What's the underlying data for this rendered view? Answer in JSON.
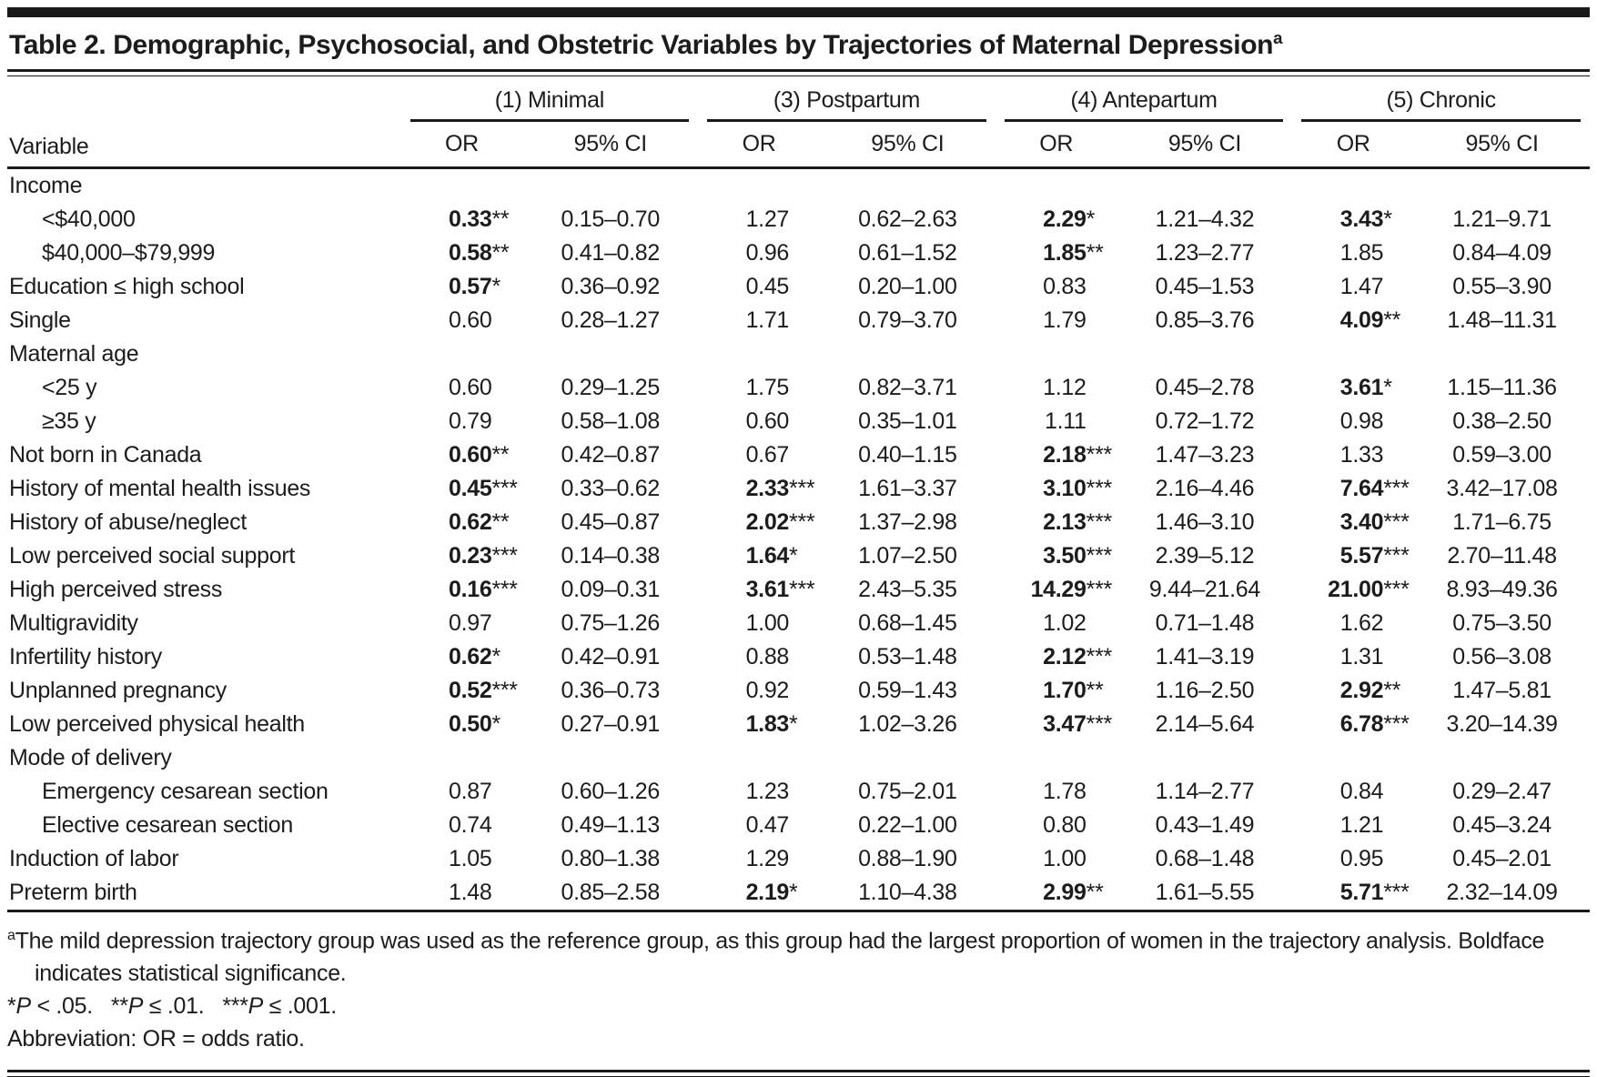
{
  "title": {
    "text": "Table 2. Demographic, Psychosocial, and Obstetric Variables by Trajectories of Maternal Depression",
    "superscript": "a"
  },
  "table": {
    "variable_header": "Variable",
    "or_header": "OR",
    "ci_header": "95% CI",
    "groups": [
      {
        "label": "(1) Minimal"
      },
      {
        "label": "(3) Postpartum"
      },
      {
        "label": "(4) Antepartum"
      },
      {
        "label": "(5) Chronic"
      }
    ],
    "rows": [
      {
        "label": "Income",
        "type": "section",
        "cells": []
      },
      {
        "label": "<$40,000",
        "type": "indent",
        "cells": [
          {
            "v": "0.33",
            "stars": "**",
            "bold": true
          },
          {
            "v": "0.15–0.70"
          },
          {
            "v": "1.27"
          },
          {
            "v": "0.62–2.63"
          },
          {
            "v": "2.29",
            "stars": "*",
            "bold": true
          },
          {
            "v": "1.21–4.32"
          },
          {
            "v": "3.43",
            "stars": "*",
            "bold": true
          },
          {
            "v": "1.21–9.71"
          }
        ]
      },
      {
        "label": "$40,000–$79,999",
        "type": "indent",
        "cells": [
          {
            "v": "0.58",
            "stars": "**",
            "bold": true
          },
          {
            "v": "0.41–0.82"
          },
          {
            "v": "0.96"
          },
          {
            "v": "0.61–1.52"
          },
          {
            "v": "1.85",
            "stars": "**",
            "bold": true
          },
          {
            "v": "1.23–2.77"
          },
          {
            "v": "1.85"
          },
          {
            "v": "0.84–4.09"
          }
        ]
      },
      {
        "label": "Education ≤ high school",
        "type": "plain",
        "cells": [
          {
            "v": "0.57",
            "stars": "*",
            "bold": true
          },
          {
            "v": "0.36–0.92"
          },
          {
            "v": "0.45"
          },
          {
            "v": "0.20–1.00"
          },
          {
            "v": "0.83"
          },
          {
            "v": "0.45–1.53"
          },
          {
            "v": "1.47"
          },
          {
            "v": "0.55–3.90"
          }
        ]
      },
      {
        "label": "Single",
        "type": "plain",
        "cells": [
          {
            "v": "0.60"
          },
          {
            "v": "0.28–1.27"
          },
          {
            "v": "1.71"
          },
          {
            "v": "0.79–3.70"
          },
          {
            "v": "1.79"
          },
          {
            "v": "0.85–3.76"
          },
          {
            "v": "4.09",
            "stars": "**",
            "bold": true
          },
          {
            "v": "1.48–11.31"
          }
        ]
      },
      {
        "label": "Maternal age",
        "type": "section",
        "cells": []
      },
      {
        "label": "<25 y",
        "type": "indent",
        "cells": [
          {
            "v": "0.60"
          },
          {
            "v": "0.29–1.25"
          },
          {
            "v": "1.75"
          },
          {
            "v": "0.82–3.71"
          },
          {
            "v": "1.12"
          },
          {
            "v": "0.45–2.78"
          },
          {
            "v": "3.61",
            "stars": "*",
            "bold": true
          },
          {
            "v": "1.15–11.36"
          }
        ]
      },
      {
        "label": "≥35 y",
        "type": "indent",
        "cells": [
          {
            "v": "0.79"
          },
          {
            "v": "0.58–1.08"
          },
          {
            "v": "0.60"
          },
          {
            "v": "0.35–1.01"
          },
          {
            "v": "1.11"
          },
          {
            "v": "0.72–1.72"
          },
          {
            "v": "0.98"
          },
          {
            "v": "0.38–2.50"
          }
        ]
      },
      {
        "label": "Not born in Canada",
        "type": "plain",
        "cells": [
          {
            "v": "0.60",
            "stars": "**",
            "bold": true
          },
          {
            "v": "0.42–0.87"
          },
          {
            "v": "0.67"
          },
          {
            "v": "0.40–1.15"
          },
          {
            "v": "2.18",
            "stars": "***",
            "bold": true
          },
          {
            "v": "1.47–3.23"
          },
          {
            "v": "1.33"
          },
          {
            "v": "0.59–3.00"
          }
        ]
      },
      {
        "label": "History of mental health issues",
        "type": "plain",
        "cells": [
          {
            "v": "0.45",
            "stars": "***",
            "bold": true
          },
          {
            "v": "0.33–0.62"
          },
          {
            "v": "2.33",
            "stars": "***",
            "bold": true
          },
          {
            "v": "1.61–3.37"
          },
          {
            "v": "3.10",
            "stars": "***",
            "bold": true
          },
          {
            "v": "2.16–4.46"
          },
          {
            "v": "7.64",
            "stars": "***",
            "bold": true
          },
          {
            "v": "3.42–17.08"
          }
        ]
      },
      {
        "label": "History of abuse/neglect",
        "type": "plain",
        "cells": [
          {
            "v": "0.62",
            "stars": "**",
            "bold": true
          },
          {
            "v": "0.45–0.87"
          },
          {
            "v": "2.02",
            "stars": "***",
            "bold": true
          },
          {
            "v": "1.37–2.98"
          },
          {
            "v": "2.13",
            "stars": "***",
            "bold": true
          },
          {
            "v": "1.46–3.10"
          },
          {
            "v": "3.40",
            "stars": "***",
            "bold": true
          },
          {
            "v": "1.71–6.75"
          }
        ]
      },
      {
        "label": "Low perceived social support",
        "type": "plain",
        "cells": [
          {
            "v": "0.23",
            "stars": "***",
            "bold": true
          },
          {
            "v": "0.14–0.38"
          },
          {
            "v": "1.64",
            "stars": "*",
            "bold": true
          },
          {
            "v": "1.07–2.50"
          },
          {
            "v": "3.50",
            "stars": "***",
            "bold": true
          },
          {
            "v": "2.39–5.12"
          },
          {
            "v": "5.57",
            "stars": "***",
            "bold": true
          },
          {
            "v": "2.70–11.48"
          }
        ]
      },
      {
        "label": "High perceived stress",
        "type": "plain",
        "cells": [
          {
            "v": "0.16",
            "stars": "***",
            "bold": true
          },
          {
            "v": "0.09–0.31"
          },
          {
            "v": "3.61",
            "stars": "***",
            "bold": true
          },
          {
            "v": "2.43–5.35"
          },
          {
            "v": "14.29",
            "stars": "***",
            "bold": true
          },
          {
            "v": "9.44–21.64"
          },
          {
            "v": "21.00",
            "stars": "***",
            "bold": true
          },
          {
            "v": "8.93–49.36"
          }
        ]
      },
      {
        "label": "Multigravidity",
        "type": "plain",
        "cells": [
          {
            "v": "0.97"
          },
          {
            "v": "0.75–1.26"
          },
          {
            "v": "1.00"
          },
          {
            "v": "0.68–1.45"
          },
          {
            "v": "1.02"
          },
          {
            "v": "0.71–1.48"
          },
          {
            "v": "1.62"
          },
          {
            "v": "0.75–3.50"
          }
        ]
      },
      {
        "label": "Infertility history",
        "type": "plain",
        "cells": [
          {
            "v": "0.62",
            "stars": "*",
            "bold": true
          },
          {
            "v": "0.42–0.91"
          },
          {
            "v": "0.88"
          },
          {
            "v": "0.53–1.48"
          },
          {
            "v": "2.12",
            "stars": "***",
            "bold": true
          },
          {
            "v": "1.41–3.19"
          },
          {
            "v": "1.31"
          },
          {
            "v": "0.56–3.08"
          }
        ]
      },
      {
        "label": "Unplanned pregnancy",
        "type": "plain",
        "cells": [
          {
            "v": "0.52",
            "stars": "***",
            "bold": true
          },
          {
            "v": "0.36–0.73"
          },
          {
            "v": "0.92"
          },
          {
            "v": "0.59–1.43"
          },
          {
            "v": "1.70",
            "stars": "**",
            "bold": true
          },
          {
            "v": "1.16–2.50"
          },
          {
            "v": "2.92",
            "stars": "**",
            "bold": true
          },
          {
            "v": "1.47–5.81"
          }
        ]
      },
      {
        "label": "Low perceived physical health",
        "type": "plain",
        "cells": [
          {
            "v": "0.50",
            "stars": "*",
            "bold": true
          },
          {
            "v": "0.27–0.91"
          },
          {
            "v": "1.83",
            "stars": "*",
            "bold": true
          },
          {
            "v": "1.02–3.26"
          },
          {
            "v": "3.47",
            "stars": "***",
            "bold": true
          },
          {
            "v": "2.14–5.64"
          },
          {
            "v": "6.78",
            "stars": "***",
            "bold": true
          },
          {
            "v": "3.20–14.39"
          }
        ]
      },
      {
        "label": "Mode of delivery",
        "type": "section",
        "cells": []
      },
      {
        "label": "Emergency cesarean section",
        "type": "indent",
        "cells": [
          {
            "v": "0.87"
          },
          {
            "v": "0.60–1.26"
          },
          {
            "v": "1.23"
          },
          {
            "v": "0.75–2.01"
          },
          {
            "v": "1.78"
          },
          {
            "v": "1.14–2.77"
          },
          {
            "v": "0.84"
          },
          {
            "v": "0.29–2.47"
          }
        ]
      },
      {
        "label": "Elective cesarean section",
        "type": "indent",
        "cells": [
          {
            "v": "0.74"
          },
          {
            "v": "0.49–1.13"
          },
          {
            "v": "0.47"
          },
          {
            "v": "0.22–1.00"
          },
          {
            "v": "0.80"
          },
          {
            "v": "0.43–1.49"
          },
          {
            "v": "1.21"
          },
          {
            "v": "0.45–3.24"
          }
        ]
      },
      {
        "label": "Induction of labor",
        "type": "plain",
        "cells": [
          {
            "v": "1.05"
          },
          {
            "v": "0.80–1.38"
          },
          {
            "v": "1.29"
          },
          {
            "v": "0.88–1.90"
          },
          {
            "v": "1.00"
          },
          {
            "v": "0.68–1.48"
          },
          {
            "v": "0.95"
          },
          {
            "v": "0.45–2.01"
          }
        ]
      },
      {
        "label": "Preterm birth",
        "type": "plain",
        "cells": [
          {
            "v": "1.48"
          },
          {
            "v": "0.85–2.58"
          },
          {
            "v": "2.19",
            "stars": "*",
            "bold": true
          },
          {
            "v": "1.10–4.38"
          },
          {
            "v": "2.99",
            "stars": "**",
            "bold": true
          },
          {
            "v": "1.61–5.55"
          },
          {
            "v": "5.71",
            "stars": "***",
            "bold": true
          },
          {
            "v": "2.32–14.09"
          }
        ]
      }
    ]
  },
  "footnotes": {
    "note_a_marker": "a",
    "note_a": "The mild depression trajectory group was used as the reference group, as this group had the largest proportion of women in the trajectory analysis. Boldface indicates statistical significance.",
    "significance": [
      {
        "stars": "*",
        "p": "P",
        "condition": " < .05."
      },
      {
        "stars": "**",
        "p": "P",
        "condition": " ≤ .01."
      },
      {
        "stars": "***",
        "p": "P",
        "condition": " ≤ .001."
      }
    ],
    "abbreviation": "Abbreviation: OR = odds ratio."
  }
}
